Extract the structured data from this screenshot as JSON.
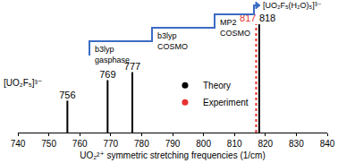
{
  "chart_data": {
    "type": "stem",
    "xlabel": "UO₂²⁺ symmetric stretching frequencies (1/cm)",
    "xlim": [
      740,
      840
    ],
    "xticks": [
      740,
      750,
      760,
      770,
      780,
      790,
      800,
      810,
      820,
      830,
      840
    ],
    "ylim": [
      0,
      1.1
    ],
    "tick_labels": "x",
    "legend": "right",
    "data_labels": true,
    "series": [
      {
        "name": "Theory",
        "color": "#000000",
        "x": [
          756,
          769,
          777,
          818
        ],
        "values": [
          0.28,
          0.46,
          0.53,
          0.95
        ]
      },
      {
        "name": "Experiment",
        "color": "#e8312f",
        "line_style": "dotted",
        "x": [
          817
        ],
        "values": [
          0.95
        ]
      }
    ],
    "annotations": [
      "[UO₂F₅]³⁻",
      "b3lyp\ngasphase",
      "b3lyp\nCOSMO",
      "MP2\nCOSMO",
      "[UO₂F₅(H₂O)₅]³⁻"
    ]
  }
}
